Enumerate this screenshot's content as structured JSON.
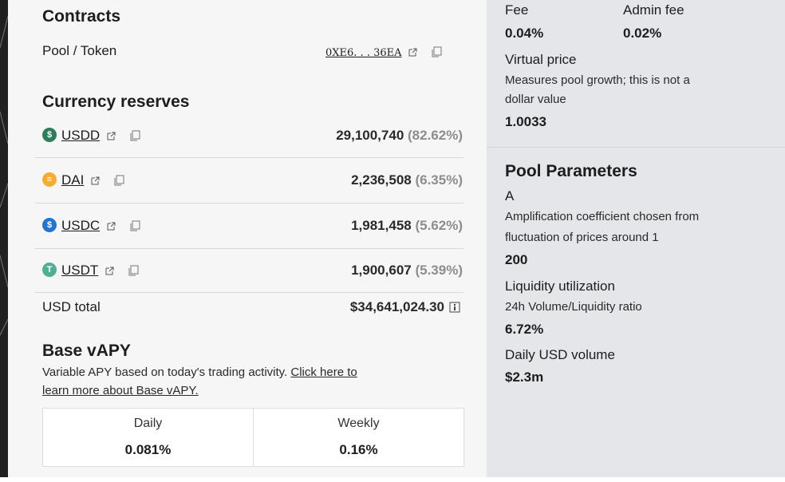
{
  "contracts": {
    "title": "Contracts",
    "pool_token_label": "Pool / Token",
    "address": "0XE6. . . 36EA"
  },
  "reserves": {
    "title": "Currency reserves",
    "coins": [
      {
        "symbol": "USDD",
        "amount": "29,100,740",
        "pct": "(82.62%)",
        "color": "#2f7d5b",
        "glyph": "$"
      },
      {
        "symbol": "DAI",
        "amount": "2,236,508",
        "pct": "(6.35%)",
        "color": "#f5ac37",
        "glyph": "≡"
      },
      {
        "symbol": "USDC",
        "amount": "1,981,458",
        "pct": "(5.62%)",
        "color": "#2775ca",
        "glyph": "$"
      },
      {
        "symbol": "USDT",
        "amount": "1,900,607",
        "pct": "(5.39%)",
        "color": "#50af95",
        "glyph": "T"
      }
    ],
    "total_label": "USD total",
    "total_value": "$34,641,024.30"
  },
  "base_vapy": {
    "title": "Base vAPY",
    "description": "Variable APY based on today's trading activity.",
    "link_text_1": "Click here to",
    "link_text_2": "learn more about Base vAPY.",
    "daily_label": "Daily",
    "daily_value": "0.081%",
    "weekly_label": "Weekly",
    "weekly_value": "0.16%"
  },
  "fees": {
    "fee_label": "Fee",
    "fee_value": "0.04%",
    "admin_fee_label": "Admin fee",
    "admin_fee_value": "0.02%",
    "virtual_price_label": "Virtual price",
    "virtual_price_desc_1": "Measures pool growth; this is not a",
    "virtual_price_desc_2": "dollar value",
    "virtual_price_value": "1.0033"
  },
  "pool_parameters": {
    "title": "Pool Parameters",
    "a_label": "A",
    "a_desc_1": "Amplification coefficient chosen from",
    "a_desc_2": "fluctuation of prices around 1",
    "a_value": "200",
    "liquidity_label": "Liquidity utilization",
    "liquidity_desc": "24h Volume/Liquidity ratio",
    "liquidity_value": "6.72%",
    "volume_label": "Daily USD volume",
    "volume_value": "$2.3m"
  },
  "icons": {
    "external": "external-link-icon",
    "copy": "copy-icon",
    "info": "info-icon"
  }
}
